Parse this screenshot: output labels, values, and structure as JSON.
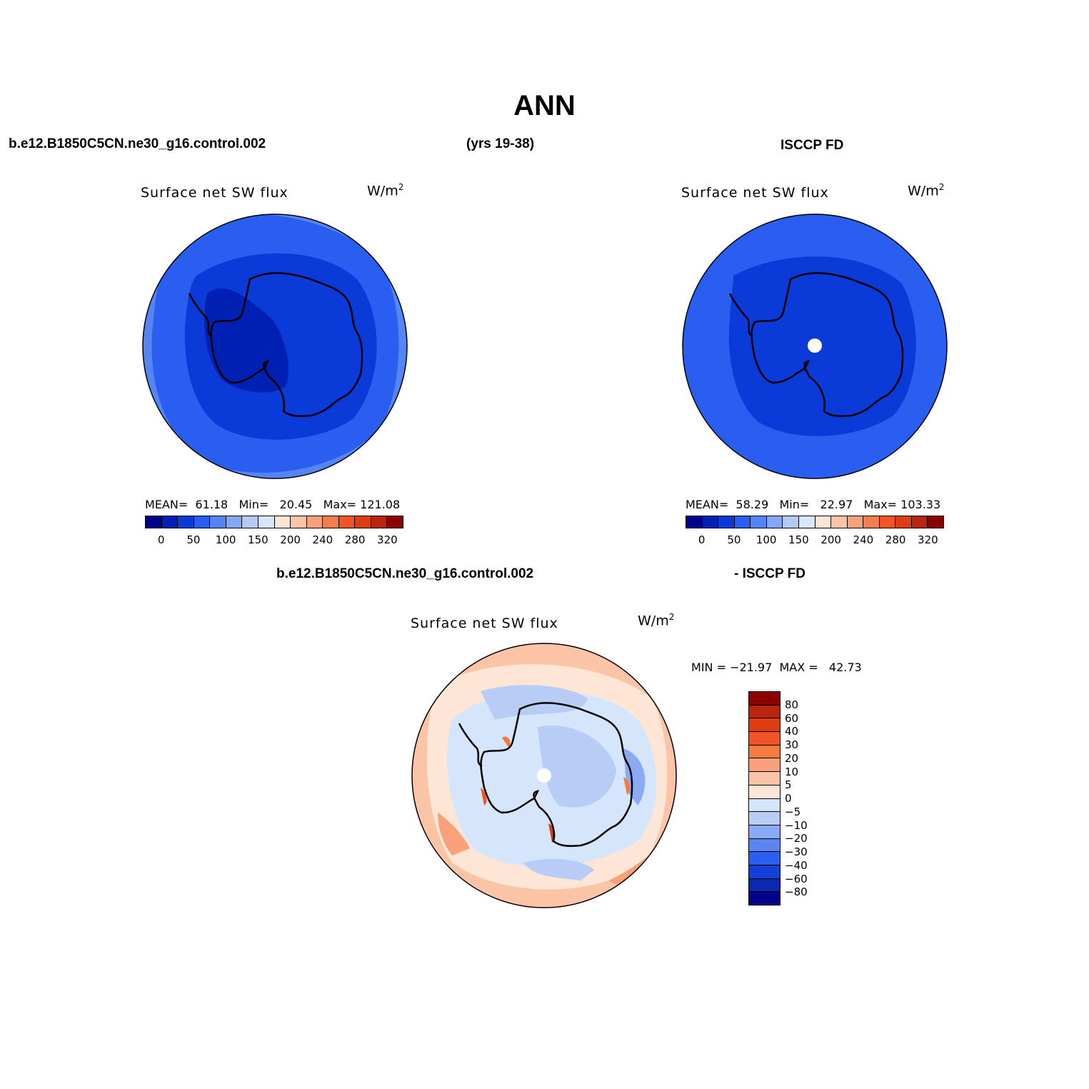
{
  "figure": {
    "title": "ANN",
    "case_name": "b.e12.B1850C5CN.ne30_g16.control.002",
    "years": "(yrs 19-38)",
    "obs_name": "ISCCP FD",
    "diff_case_name": "b.e12.B1850C5CN.ne30_g16.control.002",
    "diff_obs_name": "- ISCCP FD"
  },
  "panels": {
    "model": {
      "variable": "Surface net SW flux",
      "units": "W/m",
      "units_sup": "2",
      "stats": "MEAN=  61.18   Min=   20.45   Max= 121.08"
    },
    "obs": {
      "variable": "Surface net SW flux",
      "units": "W/m",
      "units_sup": "2",
      "stats": "MEAN=  58.29   Min=   22.97   Max= 103.33"
    },
    "diff": {
      "variable": "Surface net SW flux",
      "units": "W/m",
      "units_sup": "2",
      "stats": "MIN = −21.97  MAX =   42.73"
    }
  },
  "colorbar_abs": {
    "colors": [
      "#00008b",
      "#0020b4",
      "#0a3ad8",
      "#2a5ef0",
      "#5585f5",
      "#85a8f5",
      "#b5c9f5",
      "#d8e6fa",
      "#fde5d5",
      "#fbc4a8",
      "#f8a17e",
      "#f47d50",
      "#f25525",
      "#dd3d10",
      "#b8260b",
      "#8b0000"
    ],
    "ticks": [
      "0",
      "50",
      "100",
      "150",
      "200",
      "240",
      "280",
      "320"
    ]
  },
  "colorbar_diff": {
    "colors": [
      "#8b0000",
      "#b8260b",
      "#dd3d10",
      "#f25525",
      "#f87a3e",
      "#faa07a",
      "#fcc4a6",
      "#fde6d6",
      "#d5e5fb",
      "#b8cdf5",
      "#8aaaf5",
      "#5a85f0",
      "#2a5ef0",
      "#1240d8",
      "#0a28b0",
      "#00008b"
    ],
    "ticks": [
      "80",
      "60",
      "40",
      "30",
      "20",
      "10",
      "5",
      "0",
      "−5",
      "−10",
      "−20",
      "−30",
      "−40",
      "−60",
      "−80"
    ]
  }
}
